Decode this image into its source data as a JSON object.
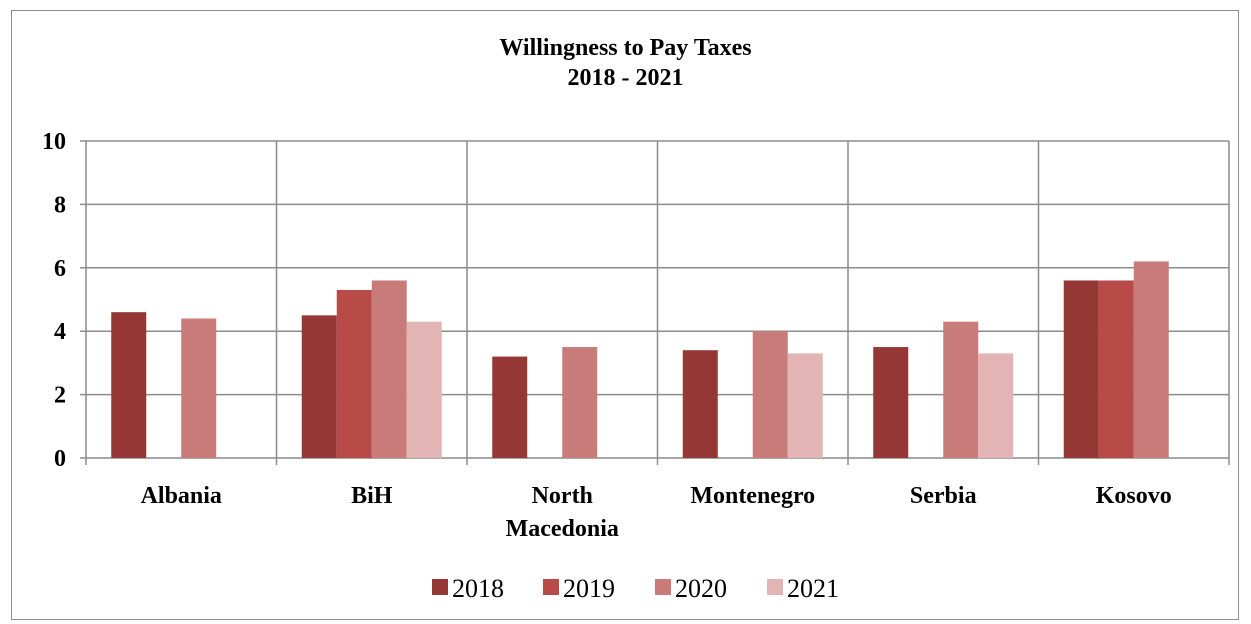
{
  "chart_data": {
    "type": "bar",
    "title": "Willingness to Pay Taxes",
    "subtitle": "2018 - 2021",
    "xlabel": "",
    "ylabel": "",
    "ylim": [
      0,
      10
    ],
    "yticks": [
      "0",
      "2",
      "4",
      "6",
      "8",
      "10"
    ],
    "grid": true,
    "legend_position": "bottom",
    "categories": [
      [
        "Albania"
      ],
      [
        "BiH"
      ],
      [
        "North",
        "Macedonia"
      ],
      [
        "Montenegro"
      ],
      [
        "Serbia"
      ],
      [
        "Kosovo"
      ]
    ],
    "series": [
      {
        "name": "2018",
        "color": "#953735",
        "values": [
          4.6,
          4.5,
          3.2,
          3.4,
          3.5,
          5.6
        ]
      },
      {
        "name": "2019",
        "color": "#b84a48",
        "values": [
          null,
          5.3,
          null,
          null,
          null,
          5.6
        ]
      },
      {
        "name": "2020",
        "color": "#c97b7a",
        "values": [
          4.4,
          5.6,
          3.5,
          4.0,
          4.3,
          6.2
        ]
      },
      {
        "name": "2021",
        "color": "#e2b5b4",
        "values": [
          null,
          4.3,
          null,
          3.3,
          3.3,
          null
        ]
      }
    ]
  }
}
